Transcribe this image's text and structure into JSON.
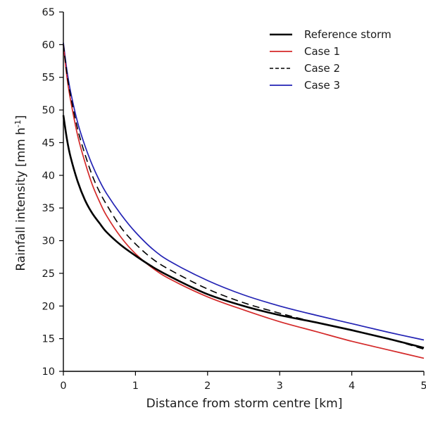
{
  "chart_data": {
    "type": "line",
    "xlabel": "Distance from storm centre [km]",
    "ylabel": {
      "main": "Rainfall intensity [mm h",
      "sup": "-1",
      "end": "]"
    },
    "xlim": [
      0,
      5
    ],
    "ylim": [
      10,
      65
    ],
    "xticks": [
      "0",
      "1",
      "2",
      "3",
      "4",
      "5"
    ],
    "yticks": [
      "10",
      "15",
      "20",
      "25",
      "30",
      "35",
      "40",
      "45",
      "50",
      "55",
      "60",
      "65"
    ],
    "grid": false,
    "legend_position": "top-right",
    "x": [
      0,
      0.05,
      0.1,
      0.2,
      0.3,
      0.4,
      0.5,
      0.6,
      0.8,
      1.0,
      1.25,
      1.5,
      2.0,
      2.5,
      3.0,
      3.5,
      4.0,
      4.5,
      5.0
    ],
    "series": [
      {
        "name": "Reference storm",
        "color": "#000000",
        "style": "solid-thick",
        "values": [
          49.2,
          45.5,
          42.8,
          39.0,
          36.2,
          34.2,
          32.7,
          31.3,
          29.3,
          27.7,
          25.9,
          24.4,
          21.8,
          20.0,
          18.6,
          17.5,
          16.3,
          15.0,
          13.6
        ]
      },
      {
        "name": "Case 1",
        "color": "#d42a2a",
        "style": "solid",
        "values": [
          60.0,
          55.0,
          51.5,
          46.0,
          42.0,
          38.6,
          36.0,
          33.8,
          30.5,
          28.0,
          25.7,
          24.0,
          21.4,
          19.4,
          17.6,
          16.1,
          14.6,
          13.3,
          12.0
        ]
      },
      {
        "name": "Case 2",
        "color": "#000000",
        "style": "dashed",
        "values": [
          60.0,
          55.5,
          52.2,
          47.0,
          43.2,
          40.0,
          37.5,
          35.5,
          32.0,
          29.5,
          27.1,
          25.4,
          22.6,
          20.5,
          18.9,
          17.5,
          16.3,
          15.0,
          13.4
        ]
      },
      {
        "name": "Case 3",
        "color": "#2323b4",
        "style": "solid",
        "values": [
          60.3,
          56.0,
          52.8,
          48.0,
          44.5,
          41.6,
          39.2,
          37.2,
          34.0,
          31.3,
          28.6,
          26.7,
          23.9,
          21.7,
          20.0,
          18.6,
          17.3,
          16.0,
          14.8
        ]
      }
    ]
  }
}
